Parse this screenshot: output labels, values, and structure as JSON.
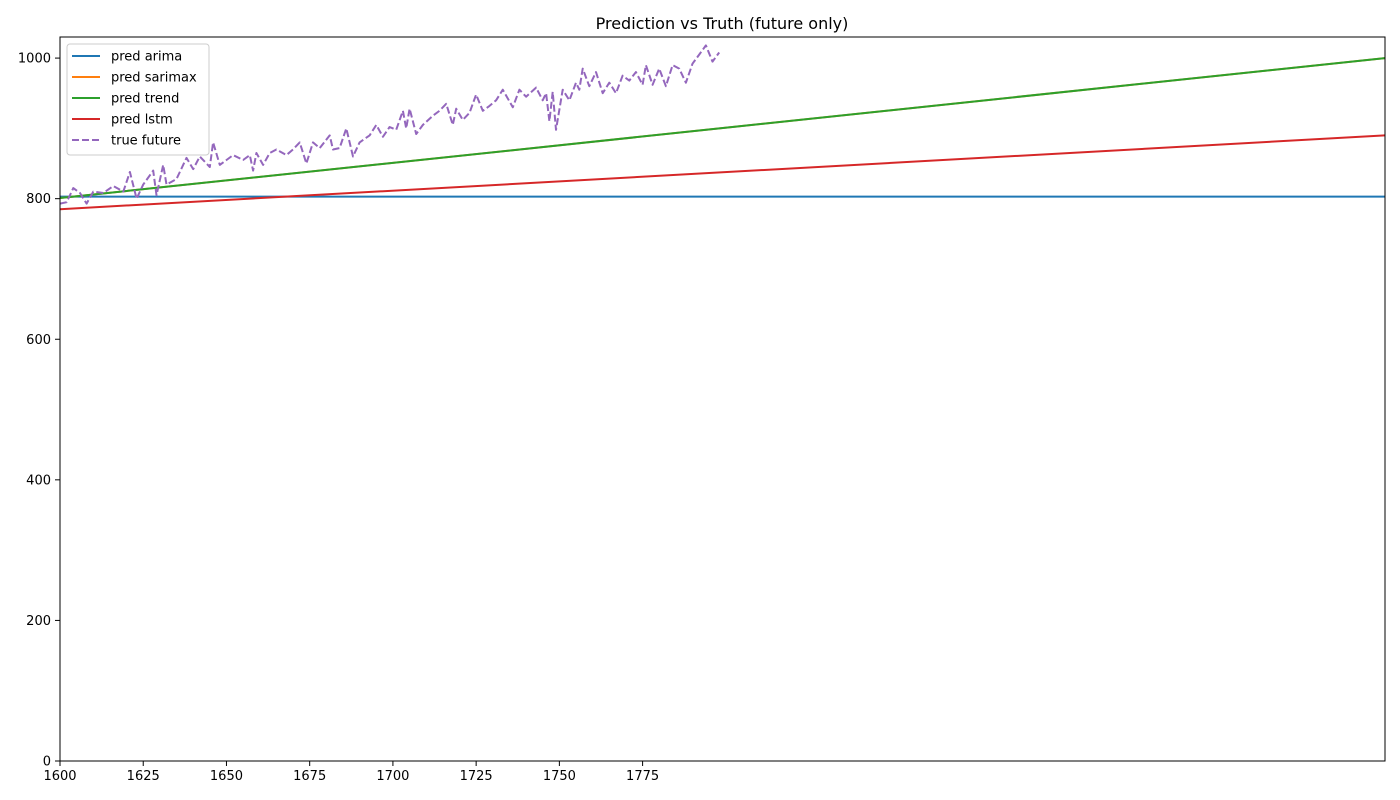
{
  "chart_data": {
    "type": "line",
    "title": "Prediction vs Truth (future only)",
    "xlabel": "",
    "ylabel": "",
    "xlim": [
      1600,
      1998
    ],
    "ylim": [
      0,
      1030
    ],
    "xticks": [
      1600,
      1625,
      1650,
      1675,
      1700,
      1725,
      1750,
      1775
    ],
    "yticks": [
      0,
      200,
      400,
      600,
      800,
      1000
    ],
    "grid": false,
    "legend_position": "top-left",
    "series": [
      {
        "name": "pred arima",
        "color": "#1f77b4",
        "style": "solid",
        "x": [
          1600,
          1998
        ],
        "values": [
          803,
          803
        ]
      },
      {
        "name": "pred sarimax",
        "color": "#ff7f0e",
        "style": "solid",
        "x": [
          1600,
          1998
        ],
        "values": [
          801,
          1000
        ]
      },
      {
        "name": "pred trend",
        "color": "#2ca02c",
        "style": "solid",
        "x": [
          1600,
          1998
        ],
        "values": [
          801,
          1000
        ]
      },
      {
        "name": "pred lstm",
        "color": "#d62728",
        "style": "solid",
        "x": [
          1600,
          1998
        ],
        "values": [
          785,
          890
        ]
      },
      {
        "name": "true future",
        "color": "#9467bd",
        "style": "dashed",
        "x": [
          1600,
          1602,
          1604,
          1606,
          1608,
          1610,
          1613,
          1616,
          1619,
          1621,
          1623,
          1625,
          1628,
          1629,
          1631,
          1632,
          1635,
          1638,
          1640,
          1642,
          1645,
          1646,
          1648,
          1650,
          1652,
          1655,
          1657,
          1658,
          1659,
          1661,
          1663,
          1665,
          1668,
          1670,
          1672,
          1674,
          1676,
          1678,
          1681,
          1682,
          1684,
          1686,
          1688,
          1690,
          1693,
          1695,
          1697,
          1699,
          1701,
          1703,
          1704,
          1705,
          1707,
          1709,
          1712,
          1714,
          1716,
          1718,
          1719,
          1721,
          1723,
          1725,
          1727,
          1729,
          1731,
          1733,
          1736,
          1738,
          1740,
          1743,
          1745,
          1746,
          1747,
          1748,
          1749,
          1751,
          1753,
          1755,
          1756,
          1757,
          1759,
          1761,
          1763,
          1765,
          1767,
          1769,
          1771,
          1773,
          1775,
          1776,
          1778,
          1780,
          1782,
          1784,
          1786,
          1788,
          1790,
          1792,
          1794,
          1796,
          1798
        ],
        "values": [
          793,
          795,
          815,
          808,
          793,
          810,
          808,
          818,
          810,
          838,
          800,
          820,
          840,
          805,
          848,
          820,
          828,
          858,
          842,
          860,
          845,
          880,
          848,
          855,
          862,
          855,
          862,
          840,
          865,
          848,
          865,
          870,
          862,
          870,
          880,
          850,
          880,
          872,
          890,
          870,
          872,
          900,
          860,
          880,
          890,
          905,
          888,
          902,
          898,
          925,
          900,
          928,
          892,
          905,
          918,
          925,
          935,
          905,
          928,
          912,
          922,
          948,
          925,
          932,
          940,
          955,
          930,
          955,
          945,
          958,
          940,
          950,
          910,
          952,
          898,
          955,
          940,
          965,
          955,
          985,
          960,
          980,
          950,
          965,
          950,
          975,
          968,
          980,
          962,
          990,
          962,
          985,
          960,
          990,
          985,
          965,
          992,
          1005,
          1018,
          995,
          1008
        ]
      }
    ]
  }
}
